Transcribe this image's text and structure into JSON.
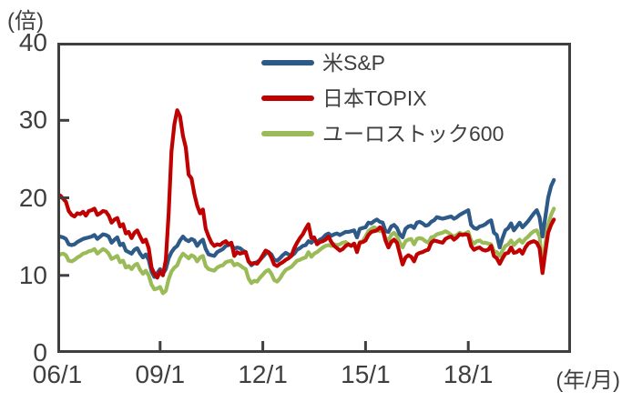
{
  "chart_data": {
    "type": "line",
    "title": "",
    "ylabel": "(倍)",
    "xlabel": "(年/月)",
    "ylim": [
      0,
      40
    ],
    "y_ticks": [
      40,
      30,
      20,
      10,
      0
    ],
    "x_ticks": [
      "06/1",
      "09/1",
      "12/1",
      "15/1",
      "18/1"
    ],
    "x_start": "2006/1",
    "x_end": "2020/7",
    "x_axis_end": "2021/1",
    "x_frequency": "monthly",
    "grid": false,
    "legend_position": "inside-top-center",
    "axis_color": "#3f3f3f",
    "z_order": [
      2,
      0,
      1
    ],
    "series": [
      {
        "name": "米S&P",
        "color": "#2d5a87",
        "values": [
          14.8,
          15.0,
          14.9,
          14.7,
          14.0,
          13.9,
          14.0,
          14.3,
          14.5,
          14.7,
          14.8,
          14.9,
          15.0,
          15.2,
          14.7,
          15.0,
          15.3,
          15.2,
          15.0,
          14.2,
          14.6,
          14.9,
          13.9,
          14.1,
          13.2,
          13.0,
          12.8,
          13.3,
          13.5,
          12.8,
          12.3,
          12.7,
          12.0,
          10.5,
          9.8,
          10.3,
          10.8,
          10.2,
          10.8,
          12.2,
          13.0,
          13.5,
          13.8,
          14.5,
          15.0,
          14.6,
          14.4,
          14.7,
          14.5,
          13.8,
          14.3,
          14.6,
          13.4,
          12.7,
          12.6,
          12.5,
          13.0,
          13.2,
          13.4,
          13.8,
          13.9,
          14.0,
          13.4,
          13.6,
          13.5,
          13.2,
          13.0,
          11.8,
          11.3,
          11.6,
          11.7,
          12.0,
          12.4,
          12.8,
          13.0,
          12.7,
          12.0,
          11.9,
          12.2,
          12.6,
          12.9,
          12.7,
          12.5,
          12.8,
          13.3,
          13.5,
          13.8,
          13.9,
          14.4,
          14.2,
          14.6,
          14.3,
          14.6,
          14.8,
          15.2,
          15.4,
          15.1,
          15.3,
          15.4,
          15.2,
          15.4,
          15.6,
          15.6,
          15.7,
          15.8,
          14.9,
          16.0,
          16.1,
          16.2,
          16.8,
          16.7,
          17.0,
          17.2,
          16.9,
          16.8,
          15.7,
          15.6,
          16.3,
          16.5,
          16.1,
          15.3,
          14.9,
          16.0,
          16.3,
          16.4,
          16.1,
          16.8,
          16.9,
          16.7,
          16.4,
          16.5,
          16.9,
          17.1,
          17.5,
          17.4,
          17.3,
          17.4,
          17.5,
          17.6,
          17.3,
          17.5,
          17.8,
          18.0,
          18.2,
          18.4,
          16.5,
          16.1,
          16.0,
          16.3,
          16.4,
          16.6,
          16.9,
          17.1,
          15.5,
          15.2,
          13.6,
          14.8,
          15.8,
          16.1,
          16.7,
          15.8,
          16.3,
          16.8,
          16.2,
          16.6,
          17.0,
          17.5,
          18.0,
          18.4,
          17.5,
          15.0,
          17.5,
          20.0,
          21.5,
          22.3
        ]
      },
      {
        "name": "日本TOPIX",
        "color": "#c00101",
        "values": [
          19.8,
          20.3,
          19.9,
          19.5,
          18.3,
          17.8,
          17.6,
          18.0,
          17.9,
          18.2,
          17.7,
          18.3,
          18.4,
          18.6,
          17.8,
          18.0,
          18.3,
          18.2,
          17.7,
          16.8,
          17.2,
          17.4,
          16.3,
          16.6,
          15.4,
          15.6,
          14.8,
          15.5,
          15.8,
          15.0,
          14.3,
          14.6,
          13.5,
          11.0,
          10.2,
          9.7,
          10.5,
          10.0,
          12.0,
          18.0,
          26.0,
          29.5,
          31.3,
          30.5,
          28.0,
          26.5,
          23.0,
          22.5,
          20.5,
          19.0,
          18.0,
          18.5,
          16.0,
          15.0,
          14.2,
          13.8,
          14.0,
          13.9,
          14.2,
          14.4,
          14.0,
          14.2,
          12.5,
          13.0,
          12.8,
          12.9,
          13.0,
          11.8,
          11.5,
          11.6,
          11.5,
          12.0,
          12.6,
          13.2,
          13.0,
          12.3,
          11.4,
          11.2,
          11.5,
          11.7,
          12.0,
          12.2,
          12.5,
          13.5,
          14.2,
          14.8,
          15.3,
          16.0,
          16.6,
          14.8,
          14.9,
          14.0,
          14.3,
          14.4,
          14.6,
          15.0,
          14.3,
          13.8,
          13.5,
          13.2,
          13.4,
          13.8,
          14.0,
          13.8,
          14.1,
          13.0,
          14.2,
          14.3,
          14.5,
          15.2,
          15.6,
          15.7,
          15.8,
          16.2,
          15.9,
          14.5,
          13.6,
          14.3,
          14.6,
          14.2,
          12.8,
          11.4,
          12.3,
          12.6,
          12.4,
          11.8,
          12.7,
          12.9,
          13.0,
          13.2,
          13.3,
          14.2,
          14.5,
          14.4,
          14.3,
          14.2,
          14.7,
          14.9,
          15.0,
          14.6,
          14.9,
          15.3,
          15.2,
          15.3,
          15.2,
          13.8,
          13.3,
          13.5,
          13.6,
          13.3,
          13.2,
          13.3,
          13.8,
          12.5,
          12.2,
          11.5,
          12.2,
          12.8,
          12.9,
          13.6,
          12.9,
          13.0,
          13.3,
          12.8,
          13.6,
          14.1,
          14.3,
          14.4,
          14.2,
          13.5,
          10.3,
          13.0,
          15.5,
          16.5,
          17.2
        ]
      },
      {
        "name": "ユーロストック600",
        "color": "#9bbb59",
        "values": [
          12.4,
          12.7,
          12.8,
          12.6,
          11.9,
          11.8,
          12.0,
          12.3,
          12.5,
          12.8,
          12.9,
          13.1,
          13.2,
          13.4,
          12.8,
          13.1,
          13.4,
          13.2,
          12.8,
          12.1,
          12.3,
          12.5,
          11.7,
          11.9,
          11.0,
          11.2,
          10.8,
          11.3,
          11.5,
          10.7,
          10.2,
          10.6,
          10.0,
          8.8,
          8.2,
          8.3,
          8.5,
          7.7,
          8.0,
          9.5,
          10.5,
          11.0,
          11.3,
          12.2,
          12.8,
          12.5,
          12.2,
          12.6,
          12.4,
          11.8,
          12.3,
          12.5,
          11.2,
          10.8,
          10.7,
          10.6,
          11.0,
          11.2,
          11.3,
          11.7,
          11.8,
          11.9,
          11.3,
          11.5,
          11.3,
          11.0,
          10.8,
          9.6,
          9.0,
          9.3,
          9.2,
          9.7,
          10.1,
          10.5,
          10.7,
          10.2,
          9.4,
          9.2,
          9.6,
          10.2,
          10.7,
          10.9,
          11.1,
          11.5,
          11.9,
          12.0,
          12.2,
          12.3,
          13.0,
          12.4,
          12.8,
          13.0,
          13.3,
          13.6,
          13.8,
          13.9,
          13.8,
          14.0,
          13.9,
          14.0,
          14.2,
          14.3,
          14.0,
          13.8,
          14.1,
          13.4,
          14.3,
          14.4,
          15.0,
          15.7,
          16.0,
          16.2,
          16.0,
          15.7,
          15.9,
          14.8,
          14.5,
          15.2,
          15.5,
          15.1,
          14.2,
          13.6,
          14.4,
          14.6,
          14.7,
          14.0,
          14.7,
          14.8,
          14.7,
          14.4,
          14.2,
          14.9,
          15.0,
          15.3,
          15.4,
          15.5,
          15.7,
          15.5,
          15.2,
          15.0,
          15.2,
          15.5,
          15.3,
          15.4,
          15.6,
          14.5,
          14.1,
          14.4,
          14.5,
          14.2,
          14.2,
          14.1,
          14.0,
          13.1,
          13.0,
          12.5,
          13.2,
          13.8,
          14.0,
          14.5,
          13.9,
          14.3,
          14.6,
          14.2,
          14.7,
          15.0,
          15.4,
          15.7,
          15.8,
          15.0,
          10.8,
          14.0,
          16.5,
          17.8,
          18.6
        ]
      }
    ]
  }
}
